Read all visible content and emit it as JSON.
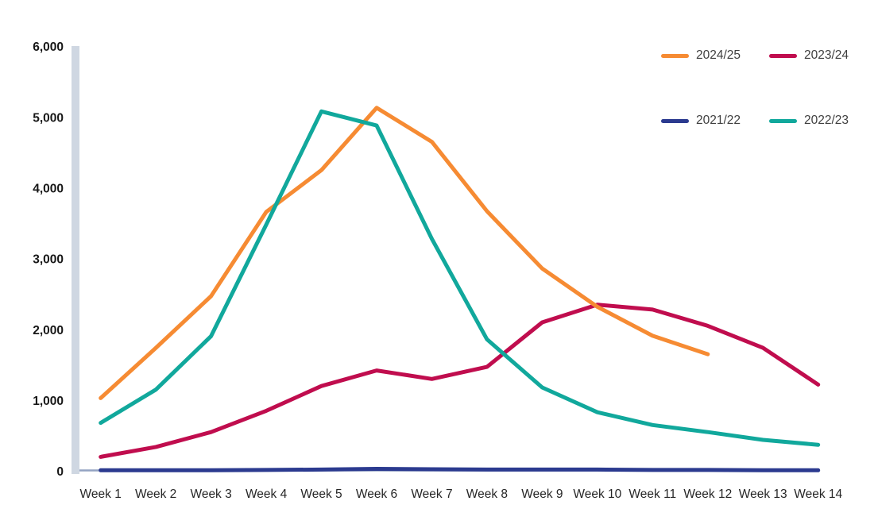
{
  "page": {
    "background": "#ffffff"
  },
  "chart_data": {
    "type": "line",
    "title": "",
    "xlabel": "",
    "ylabel": "",
    "categories": [
      "Week 1",
      "Week 2",
      "Week 3",
      "Week 4",
      "Week 5",
      "Week 6",
      "Week 7",
      "Week 8",
      "Week 9",
      "Week 10",
      "Week 11",
      "Week 12",
      "Week 13",
      "Week 14"
    ],
    "series": [
      {
        "name": "2023/24",
        "color": "#C00D4E",
        "values": [
          220,
          360,
          570,
          870,
          1220,
          1440,
          1320,
          1490,
          2120,
          2370,
          2300,
          2070,
          1760,
          1240
        ]
      },
      {
        "name": "2024/25",
        "color": "#F68B33",
        "values": [
          1050,
          1760,
          2490,
          3680,
          4270,
          5150,
          4670,
          3690,
          2880,
          2340,
          1930,
          1670
        ]
      },
      {
        "name": "2022/23",
        "color": "#11A89C",
        "values": [
          700,
          1170,
          1925,
          3500,
          5100,
          4900,
          3300,
          1880,
          1200,
          850,
          670,
          570,
          460,
          390
        ]
      },
      {
        "name": "2021/22",
        "color": "#2B3A8F",
        "values": [
          30,
          30,
          30,
          35,
          40,
          50,
          45,
          40,
          40,
          40,
          35,
          35,
          30,
          30
        ]
      }
    ],
    "ylim": [
      0,
      6000
    ],
    "y_ticks": [
      0,
      1000,
      2000,
      3000,
      4000,
      5000,
      6000
    ],
    "y_tick_labels": [
      "0",
      "1,000",
      "2,000",
      "3,000",
      "4,000",
      "5,000",
      "6,000"
    ],
    "grid": false,
    "legend_position": "top-right"
  },
  "legend": {
    "items": [
      {
        "label": "2024/25",
        "color": "#F68B33"
      },
      {
        "label": "2023/24",
        "color": "#C00D4E"
      },
      {
        "label": "2021/22",
        "color": "#2B3A8F"
      },
      {
        "label": "2022/23",
        "color": "#11A89C"
      }
    ]
  },
  "axes": {
    "y_axis_bar_color": "#CFD7E2",
    "baseline_color": "#93A3C2"
  }
}
